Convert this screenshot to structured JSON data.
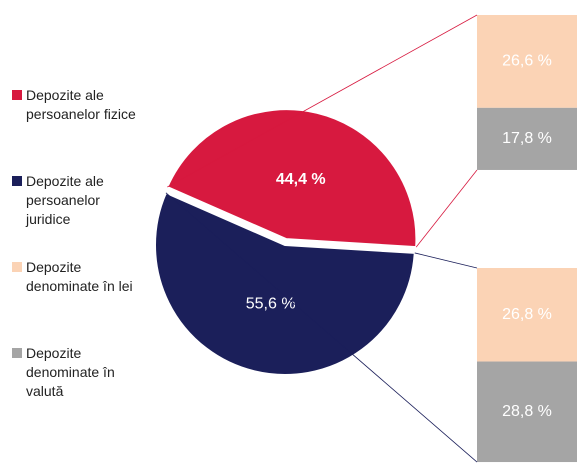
{
  "chart_data": {
    "type": "pie",
    "slices": {
      "names": [
        "Depozite ale persoanelor fizice",
        "Depozite ale persoanelor juridice"
      ],
      "colors": [
        "#d7193f",
        "#1b1f5a"
      ],
      "values": [
        44.4,
        55.6
      ],
      "value_labels": [
        "44,4 %",
        "55,6 %"
      ]
    },
    "breakdown": {
      "series": [
        {
          "name": "Depozite denominate în lei",
          "color": "#fbd3b5",
          "values": [
            26.6,
            26.8
          ],
          "value_labels": [
            "26,6 %",
            "26,8 %"
          ]
        },
        {
          "name": "Depozite denominate în valută",
          "color": "#a5a5a5",
          "values": [
            17.8,
            28.8
          ],
          "value_labels": [
            "17,8 %",
            "28,8 %"
          ]
        }
      ]
    }
  }
}
